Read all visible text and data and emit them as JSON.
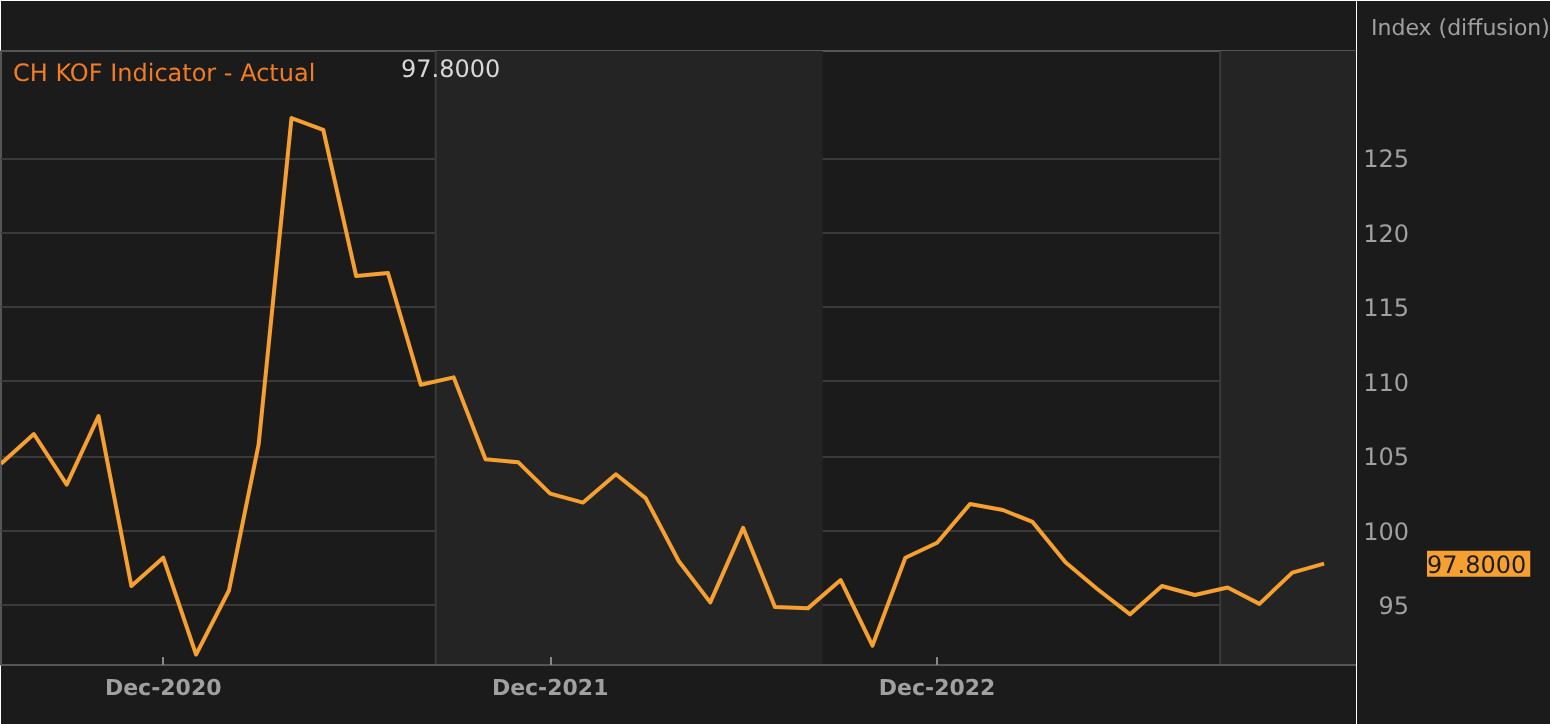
{
  "chart_data": {
    "type": "line",
    "title": "CH KOF Indicator - Actual",
    "subtitle": "97.8000",
    "ylabel": "Index (diffusion)",
    "x": [
      "2020-07",
      "2020-08",
      "2020-09",
      "2020-10",
      "2020-11",
      "2020-12",
      "2021-01",
      "2021-02",
      "2021-03",
      "2021-04",
      "2021-05",
      "2021-06",
      "2021-07",
      "2021-08",
      "2021-09",
      "2021-10",
      "2021-11",
      "2021-12",
      "2022-01",
      "2022-02",
      "2022-03",
      "2022-04",
      "2022-05",
      "2022-06",
      "2022-07",
      "2022-08",
      "2022-09",
      "2022-10",
      "2022-11",
      "2022-12",
      "2023-01",
      "2023-02",
      "2023-03",
      "2023-04",
      "2023-05",
      "2023-06",
      "2023-07",
      "2023-08",
      "2023-09",
      "2023-10",
      "2023-11",
      "2023-12"
    ],
    "series": [
      {
        "color": "#f5a030",
        "values": [
          104.5,
          106.5,
          103.1,
          107.7,
          96.3,
          98.2,
          91.7,
          96.0,
          105.8,
          127.7,
          126.9,
          117.1,
          117.3,
          109.8,
          110.3,
          104.8,
          104.6,
          102.5,
          101.9,
          103.8,
          102.2,
          98.0,
          95.2,
          100.2,
          94.9,
          94.8,
          96.7,
          92.3,
          98.2,
          99.2,
          101.8,
          101.4,
          100.6,
          97.9,
          96.1,
          94.4,
          96.3,
          95.7,
          96.2,
          95.1,
          97.2,
          97.8
        ]
      }
    ],
    "xlim": [
      "2020-07",
      "2024-01"
    ],
    "ylim": [
      91,
      132.2
    ],
    "xticks": [
      {
        "value": "2020-12",
        "label": "Dec-2020"
      },
      {
        "value": "2021-12",
        "label": "Dec-2021"
      },
      {
        "value": "2022-12",
        "label": "Dec-2022"
      }
    ],
    "yticks": [
      95,
      100,
      105,
      110,
      115,
      120,
      125
    ],
    "bands": [
      {
        "axis": "x",
        "from": "2021-08-15",
        "to": "2022-08-15",
        "color": "#242424"
      },
      {
        "axis": "x",
        "from": "2023-08-25",
        "to": "2024-01",
        "color": "#242424"
      }
    ],
    "annotations": [
      "97.8000"
    ],
    "grid": "y",
    "line_style": "solid",
    "marker": "none"
  }
}
